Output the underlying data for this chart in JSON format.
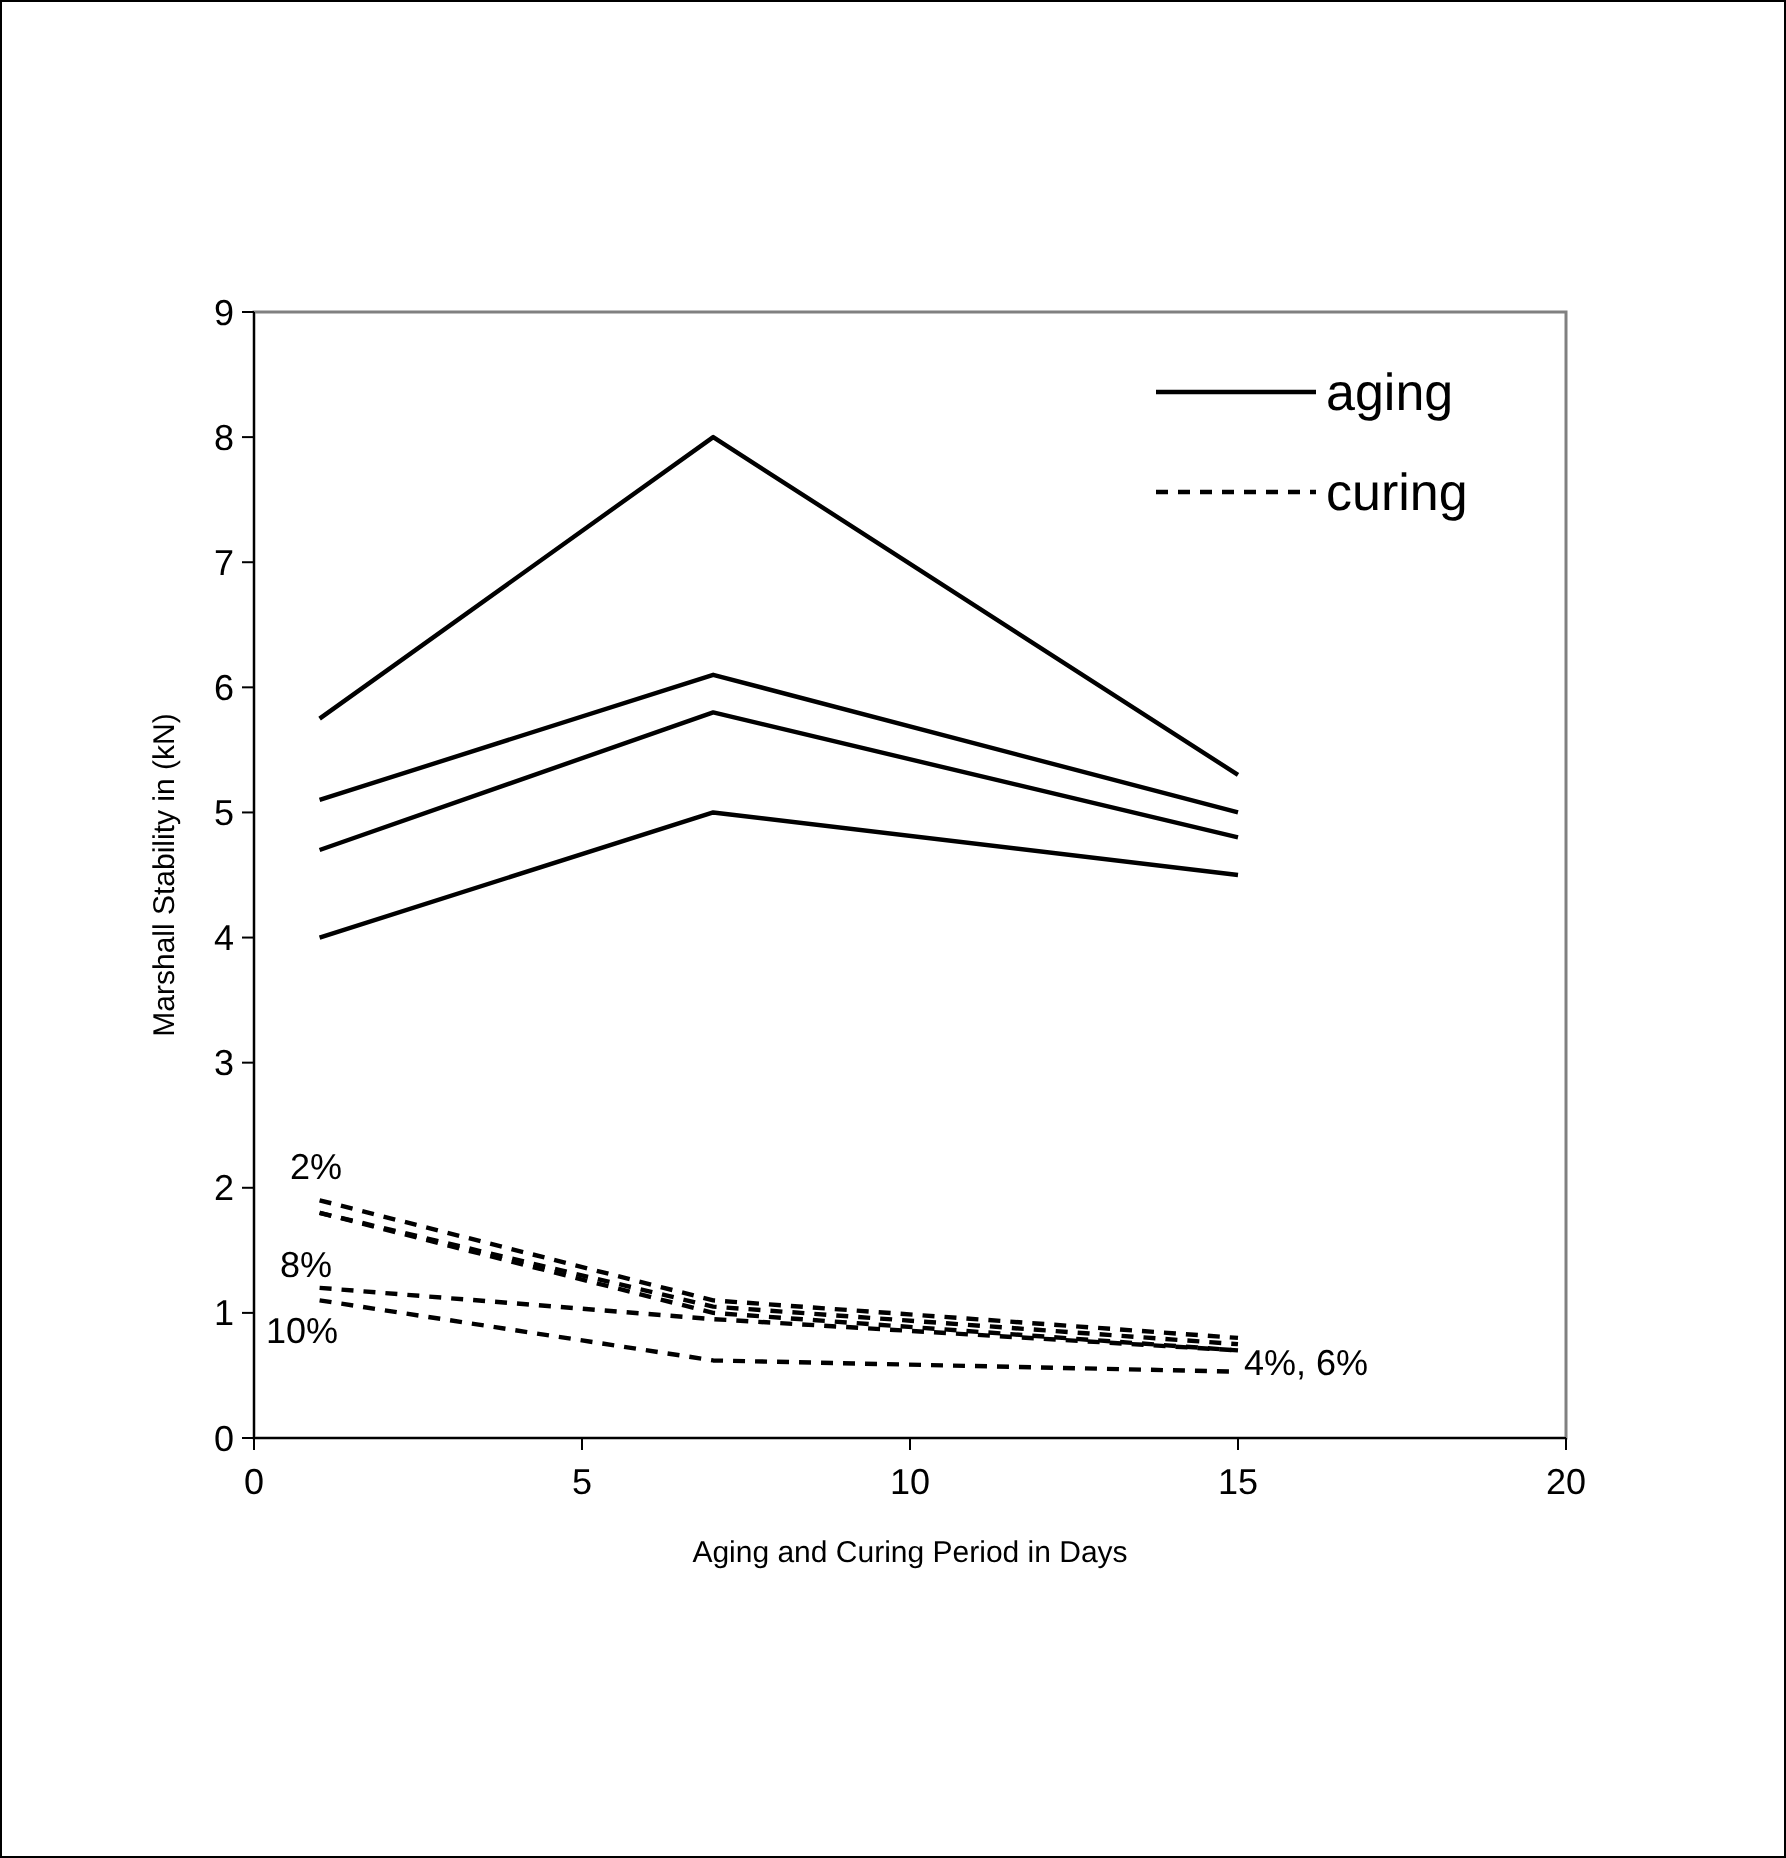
{
  "chart_data": {
    "type": "line",
    "xlabel": "Aging and Curing Period in Days",
    "ylabel": "Marshall Stability in (kN)",
    "x": [
      1,
      7,
      15
    ],
    "series": [
      {
        "name": "aging",
        "color": "#000000",
        "line_style": "solid",
        "values": [
          5.75,
          8.0,
          5.3
        ]
      },
      {
        "color": "#000000",
        "line_style": "solid",
        "values": [
          5.1,
          6.1,
          5.0
        ]
      },
      {
        "color": "#000000",
        "line_style": "solid",
        "values": [
          4.7,
          5.8,
          4.8
        ]
      },
      {
        "color": "#000000",
        "line_style": "solid",
        "values": [
          4.0,
          5.0,
          4.5
        ]
      },
      {
        "name": "curing",
        "color": "#000000",
        "line_style": "dashed",
        "values": [
          1.9,
          1.1,
          0.8
        ]
      },
      {
        "color": "#000000",
        "line_style": "dashed",
        "values": [
          1.8,
          1.05,
          0.75
        ]
      },
      {
        "color": "#000000",
        "line_style": "dashed",
        "values": [
          1.8,
          1.0,
          0.7
        ]
      },
      {
        "color": "#000000",
        "line_style": "dashed",
        "values": [
          1.2,
          0.95,
          0.7
        ]
      },
      {
        "color": "#000000",
        "line_style": "dashed",
        "values": [
          1.1,
          0.62,
          0.53
        ]
      }
    ],
    "xlim": [
      0,
      20
    ],
    "xticks": [
      0,
      5,
      10,
      15,
      20
    ],
    "ylim": [
      0,
      9
    ],
    "yticks": [
      0,
      1,
      2,
      3,
      4,
      5,
      6,
      7,
      8,
      9
    ],
    "grid": false,
    "legend": "top right",
    "marker": "none",
    "annotations": [
      "2%",
      "8%",
      "10%",
      {
        "text": "4%, 6%",
        "x": 15,
        "y": 0.7
      }
    ]
  }
}
